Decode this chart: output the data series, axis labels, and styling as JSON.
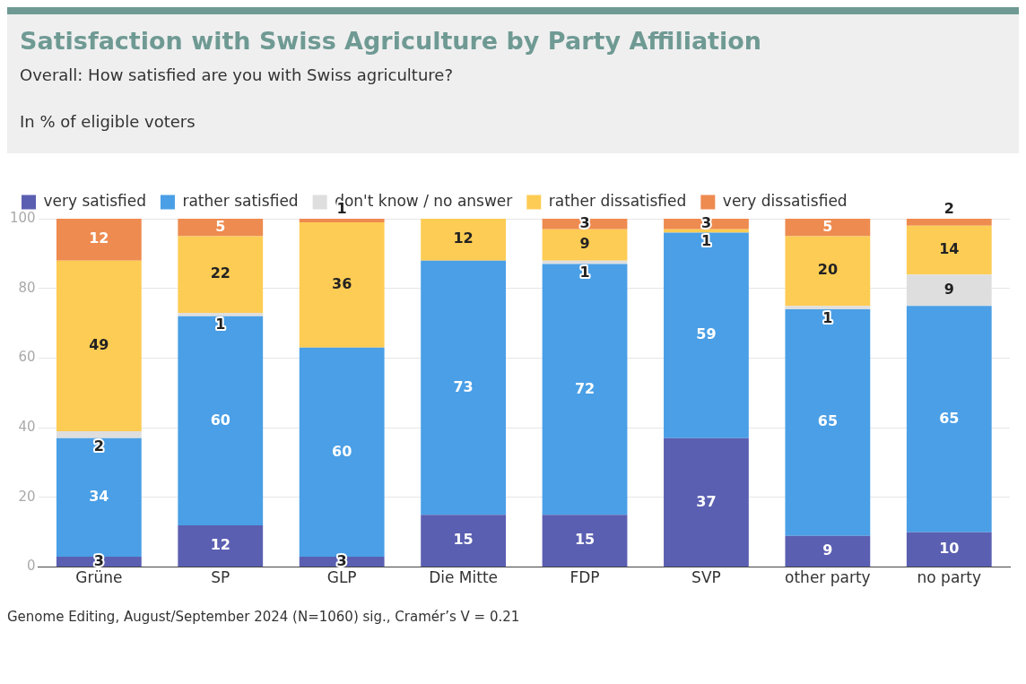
{
  "chart_data": {
    "type": "bar",
    "title": "Satisfaction with Swiss Agriculture by Party Affiliation",
    "subtitle": "Overall: How satisfied are you with Swiss agriculture?\n\nIn % of eligible voters",
    "stacked": true,
    "legend": "top left",
    "data_labels": true,
    "grid": "y",
    "ylim": [
      0,
      100
    ],
    "yticks": [
      0,
      20,
      40,
      60,
      80,
      100
    ],
    "categories": [
      "Grüne",
      "SP",
      "GLP",
      "Die Mitte",
      "FDP",
      "SVP",
      "other party",
      "no party"
    ],
    "series": [
      {
        "name": "very satisfied",
        "color": "#5b5fb1",
        "values": [
          3,
          12,
          3,
          15,
          15,
          37,
          9,
          10
        ]
      },
      {
        "name": "rather satisfied",
        "color": "#4a9fe6",
        "values": [
          34,
          60,
          60,
          73,
          72,
          59,
          65,
          65
        ]
      },
      {
        "name": "don't know / no answer",
        "color": "#dedede",
        "values": [
          2,
          1,
          null,
          null,
          1,
          null,
          1,
          9
        ]
      },
      {
        "name": "rather dissatisfied",
        "color": "#fdcc54",
        "values": [
          49,
          22,
          36,
          12,
          9,
          1,
          20,
          14
        ]
      },
      {
        "name": "very dissatisfied",
        "color": "#ee8b50",
        "values": [
          12,
          5,
          1,
          null,
          3,
          3,
          5,
          2
        ]
      }
    ],
    "annotations": [
      "Genome Editing, August/September 2024 (N=1060) sig., Cramér’s V = 0.21"
    ]
  }
}
